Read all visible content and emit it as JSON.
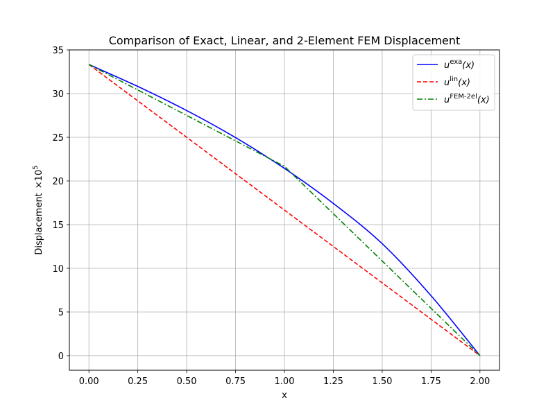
{
  "chart_data": {
    "type": "line",
    "title": "Comparison of Exact, Linear, and 2-Element FEM Displacement",
    "xlabel": "x",
    "ylabel": "Displacement",
    "ylabel_scale": "×10",
    "ylabel_exponent": "5",
    "xlim": [
      -0.1,
      2.1
    ],
    "ylim": [
      -1.67,
      35
    ],
    "xticks": [
      0.0,
      0.25,
      0.5,
      0.75,
      1.0,
      1.25,
      1.5,
      1.75,
      2.0
    ],
    "xtick_labels": [
      "0.00",
      "0.25",
      "0.50",
      "0.75",
      "1.00",
      "1.25",
      "1.50",
      "1.75",
      "2.00"
    ],
    "yticks": [
      0,
      5,
      10,
      15,
      20,
      25,
      30,
      35
    ],
    "ytick_labels": [
      "0",
      "5",
      "10",
      "15",
      "20",
      "25",
      "30",
      "35"
    ],
    "grid": true,
    "legend_position": "top-right",
    "series": [
      {
        "name_base": "u",
        "name_sup": "exa",
        "name_arg": "(x)",
        "color": "#0000ff",
        "style": "solid",
        "x": [
          0.0,
          0.25,
          0.5,
          0.75,
          1.0,
          1.25,
          1.5,
          1.75,
          2.0
        ],
        "y": [
          33.33,
          30.82,
          28.06,
          24.96,
          21.44,
          17.43,
          12.82,
          6.86,
          0.0
        ]
      },
      {
        "name_base": "u",
        "name_sup": "lin",
        "name_arg": "(x)",
        "color": "#ff0000",
        "style": "dashed",
        "x": [
          0.0,
          2.0
        ],
        "y": [
          33.33,
          0.0
        ]
      },
      {
        "name_base": "u",
        "name_sup": "FEM-2el",
        "name_arg": "(x)",
        "color": "#008000",
        "style": "dashdot",
        "x": [
          0.0,
          1.0,
          2.0
        ],
        "y": [
          33.33,
          21.67,
          0.0
        ]
      }
    ]
  }
}
